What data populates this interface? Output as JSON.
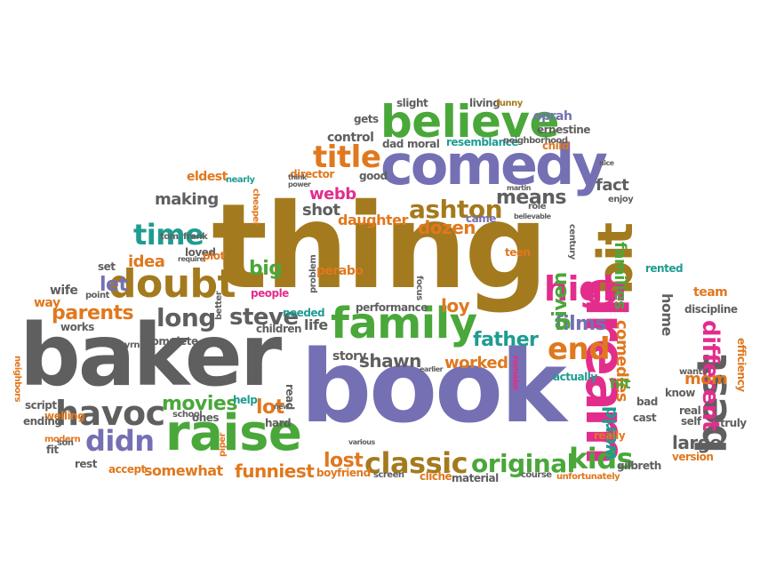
{
  "colors": {
    "gray": "#5f5f5f",
    "brown": "#a47a1e",
    "purple": "#7470b3",
    "green": "#4aa73a",
    "orange": "#e0781e",
    "teal": "#1f9c91",
    "pink": "#e32d8c"
  },
  "words": [
    {
      "text": "thing",
      "c": "brown"
    },
    {
      "text": "book",
      "c": "purple"
    },
    {
      "text": "baker",
      "c": "gray"
    },
    {
      "text": "comedy",
      "c": "purple"
    },
    {
      "text": "believe",
      "c": "green"
    },
    {
      "text": "family",
      "c": "green"
    },
    {
      "text": "raise",
      "c": "green"
    },
    {
      "text": "dream",
      "c": "pink"
    },
    {
      "text": "bit",
      "c": "brown"
    },
    {
      "text": "doubt",
      "c": "brown"
    },
    {
      "text": "havoc",
      "c": "gray"
    },
    {
      "text": "title",
      "c": "orange"
    },
    {
      "text": "high",
      "c": "pink"
    },
    {
      "text": "best",
      "c": "gray"
    },
    {
      "text": "classic",
      "c": "brown"
    },
    {
      "text": "original",
      "c": "green"
    },
    {
      "text": "time",
      "c": "teal"
    },
    {
      "text": "ashton",
      "c": "brown"
    },
    {
      "text": "end",
      "c": "orange"
    },
    {
      "text": "kids",
      "c": "green"
    },
    {
      "text": "didn",
      "c": "purple"
    },
    {
      "text": "long",
      "c": "gray"
    },
    {
      "text": "steve",
      "c": "gray"
    },
    {
      "text": "parents",
      "c": "orange"
    },
    {
      "text": "movies",
      "c": "green"
    },
    {
      "text": "father",
      "c": "teal"
    },
    {
      "text": "shawn",
      "c": "gray"
    },
    {
      "text": "lost",
      "c": "orange"
    },
    {
      "text": "funniest",
      "c": "orange"
    },
    {
      "text": "worked",
      "c": "orange"
    },
    {
      "text": "films",
      "c": "purple"
    },
    {
      "text": "different",
      "c": "pink"
    },
    {
      "text": "world",
      "c": "teal"
    },
    {
      "text": "means",
      "c": "gray"
    },
    {
      "text": "shot",
      "c": "gray"
    },
    {
      "text": "webb",
      "c": "pink"
    },
    {
      "text": "making",
      "c": "gray"
    },
    {
      "text": "dozen",
      "c": "orange"
    },
    {
      "text": "given",
      "c": "green"
    },
    {
      "text": "fact",
      "c": "gray"
    },
    {
      "text": "families",
      "c": "green"
    },
    {
      "text": "idea",
      "c": "orange"
    },
    {
      "text": "let",
      "c": "purple"
    },
    {
      "text": "big",
      "c": "green"
    },
    {
      "text": "loy",
      "c": "orange"
    },
    {
      "text": "lot",
      "c": "orange"
    },
    {
      "text": "life",
      "c": "gray"
    },
    {
      "text": "mom",
      "c": "orange"
    },
    {
      "text": "large",
      "c": "gray"
    },
    {
      "text": "home",
      "c": "gray"
    },
    {
      "text": "comedies",
      "c": "orange"
    },
    {
      "text": "daughter",
      "c": "orange"
    },
    {
      "text": "story",
      "c": "gray"
    },
    {
      "text": "somewhat",
      "c": "orange"
    },
    {
      "text": "hit",
      "c": "green"
    },
    {
      "text": "control",
      "c": "gray"
    },
    {
      "text": "eldest",
      "c": "orange"
    },
    {
      "text": "gets",
      "c": "gray"
    },
    {
      "text": "oprah",
      "c": "purple"
    },
    {
      "text": "ernestine",
      "c": "gray"
    },
    {
      "text": "child",
      "c": "orange"
    },
    {
      "text": "dad",
      "c": "gray"
    },
    {
      "text": "moral",
      "c": "gray"
    },
    {
      "text": "resemblance",
      "c": "teal"
    },
    {
      "text": "neighborhood",
      "c": "gray"
    },
    {
      "text": "slight",
      "c": "gray"
    },
    {
      "text": "living",
      "c": "gray"
    },
    {
      "text": "funny",
      "c": "brown"
    },
    {
      "text": "director",
      "c": "orange"
    },
    {
      "text": "good",
      "c": "gray"
    },
    {
      "text": "nearly",
      "c": "teal"
    },
    {
      "text": "cheaper",
      "c": "orange"
    },
    {
      "text": "think",
      "c": "gray"
    },
    {
      "text": "power",
      "c": "gray"
    },
    {
      "text": "martin",
      "c": "gray"
    },
    {
      "text": "role",
      "c": "gray"
    },
    {
      "text": "came",
      "c": "purple"
    },
    {
      "text": "believable",
      "c": "gray"
    },
    {
      "text": "enjoy",
      "c": "gray"
    },
    {
      "text": "century",
      "c": "gray"
    },
    {
      "text": "nice",
      "c": "gray"
    },
    {
      "text": "tom",
      "c": "gray"
    },
    {
      "text": "frank",
      "c": "gray"
    },
    {
      "text": "loved",
      "c": "gray"
    },
    {
      "text": "require",
      "c": "gray"
    },
    {
      "text": "plot",
      "c": "orange"
    },
    {
      "text": "teen",
      "c": "orange"
    },
    {
      "text": "rented",
      "c": "teal"
    },
    {
      "text": "set",
      "c": "gray"
    },
    {
      "text": "point",
      "c": "gray"
    },
    {
      "text": "wife",
      "c": "gray"
    },
    {
      "text": "way",
      "c": "orange"
    },
    {
      "text": "people",
      "c": "pink"
    },
    {
      "text": "problem",
      "c": "gray"
    },
    {
      "text": "perabo",
      "c": "orange"
    },
    {
      "text": "focus",
      "c": "gray"
    },
    {
      "text": "team",
      "c": "orange"
    },
    {
      "text": "discipline",
      "c": "gray"
    },
    {
      "text": "better",
      "c": "gray"
    },
    {
      "text": "needed",
      "c": "teal"
    },
    {
      "text": "performance",
      "c": "gray"
    },
    {
      "text": "works",
      "c": "gray"
    },
    {
      "text": "myrna",
      "c": "gray"
    },
    {
      "text": "complete",
      "c": "gray"
    },
    {
      "text": "children",
      "c": "gray"
    },
    {
      "text": "neighbors",
      "c": "orange"
    },
    {
      "text": "script",
      "c": "gray"
    },
    {
      "text": "welling",
      "c": "orange"
    },
    {
      "text": "ending",
      "c": "gray"
    },
    {
      "text": "modern",
      "c": "orange"
    },
    {
      "text": "son",
      "c": "gray"
    },
    {
      "text": "fit",
      "c": "gray"
    },
    {
      "text": "rest",
      "c": "gray"
    },
    {
      "text": "accept",
      "c": "orange"
    },
    {
      "text": "piper",
      "c": "orange"
    },
    {
      "text": "school",
      "c": "gray"
    },
    {
      "text": "ones",
      "c": "gray"
    },
    {
      "text": "help",
      "c": "teal"
    },
    {
      "text": "hard",
      "c": "gray"
    },
    {
      "text": "read",
      "c": "gray"
    },
    {
      "text": "remake",
      "c": "pink"
    },
    {
      "text": "actually",
      "c": "teal"
    },
    {
      "text": "earlier",
      "c": "gray"
    },
    {
      "text": "boyfriend",
      "c": "orange"
    },
    {
      "text": "various",
      "c": "gray"
    },
    {
      "text": "screen",
      "c": "gray"
    },
    {
      "text": "cliché",
      "c": "orange"
    },
    {
      "text": "material",
      "c": "gray"
    },
    {
      "text": "course",
      "c": "gray"
    },
    {
      "text": "unfortunately",
      "c": "orange"
    },
    {
      "text": "gilbreth",
      "c": "gray"
    },
    {
      "text": "version",
      "c": "orange"
    },
    {
      "text": "self",
      "c": "gray"
    },
    {
      "text": "real",
      "c": "gray"
    },
    {
      "text": "know",
      "c": "gray"
    },
    {
      "text": "wants",
      "c": "gray"
    },
    {
      "text": "efficiency",
      "c": "orange"
    },
    {
      "text": "truly",
      "c": "gray"
    },
    {
      "text": "bad",
      "c": "gray"
    },
    {
      "text": "cast",
      "c": "gray"
    },
    {
      "text": "really",
      "c": "orange"
    },
    {
      "text": "new",
      "c": "gray"
    }
  ]
}
